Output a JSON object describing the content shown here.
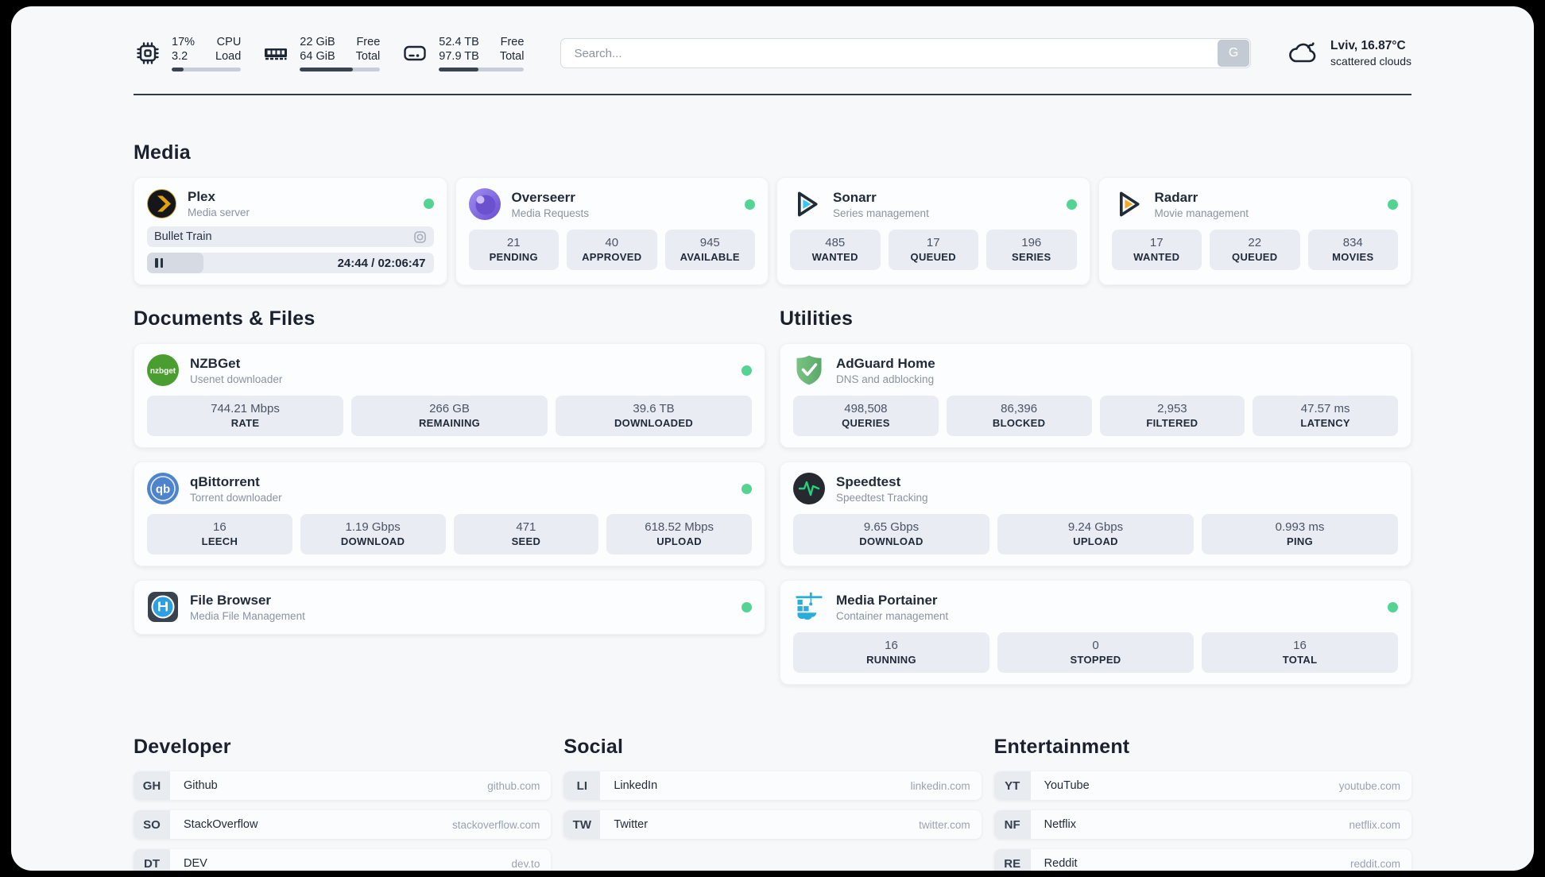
{
  "header": {
    "stats": [
      {
        "icon": "cpu-icon",
        "values": [
          "17%",
          "3.2"
        ],
        "labels": [
          "CPU",
          "Load"
        ],
        "progress": 17
      },
      {
        "icon": "memory-icon",
        "values": [
          "22 GiB",
          "64 GiB"
        ],
        "labels": [
          "Free",
          "Total"
        ],
        "progress": 66
      },
      {
        "icon": "disk-icon",
        "values": [
          "52.4 TB",
          "97.9 TB"
        ],
        "labels": [
          "Free",
          "Total"
        ],
        "progress": 46
      }
    ],
    "search": {
      "placeholder": "Search...",
      "button": "G"
    },
    "weather": {
      "location": "Lviv, 16.87°C",
      "condition": "scattered clouds"
    }
  },
  "sections": {
    "media": {
      "title": "Media",
      "plex": {
        "name": "Plex",
        "description": "Media server",
        "now_playing": "Bullet Train",
        "time_display": "24:44 / 02:06:47",
        "progress_percent": 19.6
      },
      "overseerr": {
        "name": "Overseerr",
        "description": "Media Requests",
        "stats": [
          {
            "value": "21",
            "label": "PENDING"
          },
          {
            "value": "40",
            "label": "APPROVED"
          },
          {
            "value": "945",
            "label": "AVAILABLE"
          }
        ]
      },
      "sonarr": {
        "name": "Sonarr",
        "description": "Series management",
        "stats": [
          {
            "value": "485",
            "label": "WANTED"
          },
          {
            "value": "17",
            "label": "QUEUED"
          },
          {
            "value": "196",
            "label": "SERIES"
          }
        ]
      },
      "radarr": {
        "name": "Radarr",
        "description": "Movie management",
        "stats": [
          {
            "value": "17",
            "label": "WANTED"
          },
          {
            "value": "22",
            "label": "QUEUED"
          },
          {
            "value": "834",
            "label": "MOVIES"
          }
        ]
      }
    },
    "documents": {
      "title": "Documents & Files",
      "nzbget": {
        "name": "NZBGet",
        "description": "Usenet downloader",
        "stats": [
          {
            "value": "744.21 Mbps",
            "label": "RATE"
          },
          {
            "value": "266 GB",
            "label": "REMAINING"
          },
          {
            "value": "39.6 TB",
            "label": "DOWNLOADED"
          }
        ]
      },
      "qbittorrent": {
        "name": "qBittorrent",
        "description": "Torrent downloader",
        "stats": [
          {
            "value": "16",
            "label": "LEECH"
          },
          {
            "value": "1.19 Gbps",
            "label": "DOWNLOAD"
          },
          {
            "value": "471",
            "label": "SEED"
          },
          {
            "value": "618.52 Mbps",
            "label": "UPLOAD"
          }
        ]
      },
      "filebrowser": {
        "name": "File Browser",
        "description": "Media File Management"
      }
    },
    "utilities": {
      "title": "Utilities",
      "adguard": {
        "name": "AdGuard Home",
        "description": "DNS and adblocking",
        "stats": [
          {
            "value": "498,508",
            "label": "QUERIES"
          },
          {
            "value": "86,396",
            "label": "BLOCKED"
          },
          {
            "value": "2,953",
            "label": "FILTERED"
          },
          {
            "value": "47.57 ms",
            "label": "LATENCY"
          }
        ]
      },
      "speedtest": {
        "name": "Speedtest",
        "description": "Speedtest Tracking",
        "stats": [
          {
            "value": "9.65 Gbps",
            "label": "DOWNLOAD"
          },
          {
            "value": "9.24 Gbps",
            "label": "UPLOAD"
          },
          {
            "value": "0.993 ms",
            "label": "PING"
          }
        ]
      },
      "portainer": {
        "name": "Media Portainer",
        "description": "Container management",
        "stats": [
          {
            "value": "16",
            "label": "RUNNING"
          },
          {
            "value": "0",
            "label": "STOPPED"
          },
          {
            "value": "16",
            "label": "TOTAL"
          }
        ]
      }
    },
    "developer": {
      "title": "Developer",
      "links": [
        {
          "tag": "GH",
          "label": "Github",
          "url": "github.com"
        },
        {
          "tag": "SO",
          "label": "StackOverflow",
          "url": "stackoverflow.com"
        },
        {
          "tag": "DT",
          "label": "DEV",
          "url": "dev.to"
        }
      ]
    },
    "social": {
      "title": "Social",
      "links": [
        {
          "tag": "LI",
          "label": "LinkedIn",
          "url": "linkedin.com"
        },
        {
          "tag": "TW",
          "label": "Twitter",
          "url": "twitter.com"
        }
      ]
    },
    "entertainment": {
      "title": "Entertainment",
      "links": [
        {
          "tag": "YT",
          "label": "YouTube",
          "url": "youtube.com"
        },
        {
          "tag": "NF",
          "label": "Netflix",
          "url": "netflix.com"
        },
        {
          "tag": "RE",
          "label": "Reddit",
          "url": "reddit.com"
        }
      ]
    }
  },
  "colors": {
    "status_online": "#53d492",
    "accent_plex": "#e5a00d",
    "accent_sonarr": "#38c6f4",
    "accent_radarr": "#f7a824",
    "accent_nzbget": "#4a9e2f",
    "accent_qbittorrent": "#4d84cb",
    "accent_adguard": "#67b279",
    "accent_speedtest": "#24d17e",
    "accent_portainer": "#29addd"
  }
}
